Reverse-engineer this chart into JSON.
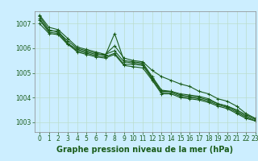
{
  "title": "Graphe pression niveau de la mer (hPa)",
  "background_color": "#cceeff",
  "grid_color": "#bbddcc",
  "line_color": "#1a5c1a",
  "xlim": [
    -0.5,
    23
  ],
  "ylim": [
    1002.6,
    1007.5
  ],
  "yticks": [
    1003,
    1004,
    1005,
    1006,
    1007
  ],
  "xticks": [
    0,
    1,
    2,
    3,
    4,
    5,
    6,
    7,
    8,
    9,
    10,
    11,
    12,
    13,
    14,
    15,
    16,
    17,
    18,
    19,
    20,
    21,
    22,
    23
  ],
  "series": [
    [
      1007.2,
      1006.7,
      1006.7,
      1006.2,
      1005.95,
      1005.85,
      1005.75,
      1005.75,
      1006.1,
      1005.6,
      1005.5,
      1005.45,
      1005.1,
      1004.85,
      1004.7,
      1004.55,
      1004.45,
      1004.25,
      1004.15,
      1003.95,
      1003.85,
      1003.65,
      1003.35,
      1003.15
    ],
    [
      1007.3,
      1006.75,
      1006.65,
      1006.3,
      1006.0,
      1005.9,
      1005.8,
      1005.7,
      1006.6,
      1005.5,
      1005.45,
      1005.4,
      1004.85,
      1004.3,
      1004.25,
      1004.15,
      1004.1,
      1004.05,
      1003.95,
      1003.75,
      1003.65,
      1003.45,
      1003.25,
      1003.1
    ],
    [
      1007.0,
      1006.6,
      1006.55,
      1006.15,
      1005.9,
      1005.8,
      1005.7,
      1005.65,
      1005.8,
      1005.35,
      1005.35,
      1005.3,
      1004.75,
      1004.2,
      1004.2,
      1004.05,
      1004.0,
      1003.95,
      1003.85,
      1003.7,
      1003.6,
      1003.4,
      1003.2,
      1003.05
    ],
    [
      1007.35,
      1006.85,
      1006.75,
      1006.4,
      1006.05,
      1005.95,
      1005.85,
      1005.75,
      1005.9,
      1005.45,
      1005.4,
      1005.35,
      1004.8,
      1004.25,
      1004.25,
      1004.1,
      1004.05,
      1004.0,
      1003.9,
      1003.75,
      1003.65,
      1003.5,
      1003.3,
      1003.15
    ],
    [
      1007.15,
      1006.65,
      1006.6,
      1006.2,
      1005.85,
      1005.75,
      1005.65,
      1005.6,
      1005.75,
      1005.3,
      1005.25,
      1005.2,
      1004.7,
      1004.15,
      1004.15,
      1004.0,
      1003.95,
      1003.9,
      1003.8,
      1003.65,
      1003.55,
      1003.35,
      1003.15,
      1003.05
    ]
  ],
  "marker": "+",
  "markersize": 3,
  "linewidth": 0.8,
  "title_fontsize": 7,
  "tick_fontsize": 5.5,
  "title_color": "#1a5c1a",
  "tick_color": "#1a5c1a",
  "spine_color": "#888888"
}
